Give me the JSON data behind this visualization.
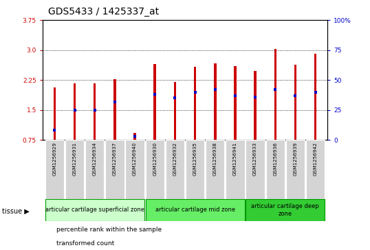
{
  "title": "GDS5433 / 1425337_at",
  "samples": [
    "GSM1256929",
    "GSM1256931",
    "GSM1256934",
    "GSM1256937",
    "GSM1256940",
    "GSM1256930",
    "GSM1256932",
    "GSM1256935",
    "GSM1256938",
    "GSM1256941",
    "GSM1256933",
    "GSM1256936",
    "GSM1256939",
    "GSM1256942"
  ],
  "transformed_count": [
    2.07,
    2.17,
    2.16,
    2.27,
    0.93,
    2.65,
    2.2,
    2.58,
    2.67,
    2.6,
    2.48,
    3.02,
    2.63,
    2.9
  ],
  "percentile_rank": [
    8,
    25,
    25,
    32,
    3,
    38,
    35,
    40,
    42,
    37,
    36,
    42,
    37,
    40
  ],
  "baseline": 0.75,
  "ylim_left": [
    0.75,
    3.75
  ],
  "ylim_right": [
    0,
    100
  ],
  "yticks_left": [
    0.75,
    1.5,
    2.25,
    3.0,
    3.75
  ],
  "yticks_right": [
    0,
    25,
    50,
    75,
    100
  ],
  "grid_values": [
    1.5,
    2.25,
    3.0
  ],
  "bar_color": "#cc0000",
  "percentile_color": "#0000cc",
  "zone_groups": [
    {
      "label": "articular cartilage superficial zone",
      "start": 0,
      "end": 5,
      "color": "#ccffcc"
    },
    {
      "label": "articular cartilage mid zone",
      "start": 5,
      "end": 10,
      "color": "#66ee66"
    },
    {
      "label": "articular cartilage deep\nzone",
      "start": 10,
      "end": 14,
      "color": "#33cc33"
    }
  ],
  "tissue_label": "tissue",
  "legend_items": [
    {
      "label": "transformed count",
      "color": "#cc0000"
    },
    {
      "label": "percentile rank within the sample",
      "color": "#0000cc"
    }
  ],
  "bar_width": 0.12,
  "title_fontsize": 10,
  "tick_fontsize": 6.5,
  "label_fontsize": 7
}
